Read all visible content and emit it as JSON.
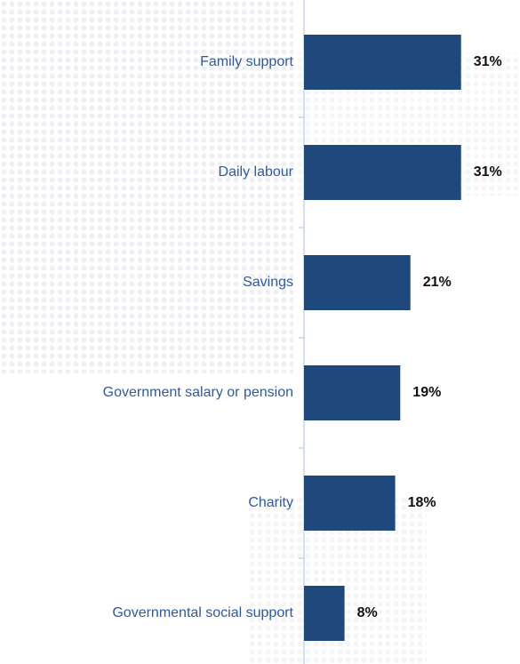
{
  "chart_data": {
    "type": "bar",
    "orientation": "horizontal",
    "categories": [
      "Family support",
      "Daily labour",
      "Savings",
      "Government salary or pension",
      "Charity",
      "Governmental social support"
    ],
    "values": [
      31,
      31,
      21,
      19,
      18,
      8
    ],
    "value_labels": [
      "31%",
      "31%",
      "21%",
      "19%",
      "18%",
      "8%"
    ],
    "color": "#1f497d"
  }
}
